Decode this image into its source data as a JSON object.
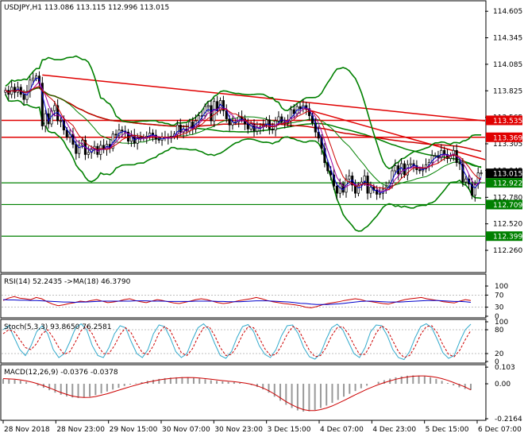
{
  "colors": {
    "background": "#ffffff",
    "frame": "#000000",
    "bull_candle": "#ffffff",
    "bear_candle": "#000000",
    "bollinger": "#008000",
    "level_line": "#008000",
    "trend_line": "#e00000",
    "ma_fast": "#0000cc",
    "ma_mid": "#a000a0",
    "ma_slow": "#cc0000",
    "ma_long_green": "#008000",
    "ma_long_red": "#cc0000",
    "rsi_line": "#cc0000",
    "rsi_ma": "#0000cc",
    "stoch_main": "#33aacc",
    "stoch_signal": "#cc0000",
    "macd_hist": "#999999",
    "macd_signal": "#cc0000",
    "tag_red": "#e00000",
    "tag_green": "#008000",
    "tag_black": "#000000"
  },
  "chart_data": [
    {
      "panel": "price",
      "type": "candlestick",
      "title": "USDJPY,H1  113.086 113.115 112.996 113.015",
      "ylim": [
        112.05,
        114.7
      ],
      "yticks": [
        "114.605",
        "114.345",
        "114.085",
        "113.825",
        "113.565",
        "113.305",
        "113.045",
        "112.780",
        "112.520",
        "112.260"
      ],
      "xticks": [
        "28 Nov 2018",
        "28 Nov 23:00",
        "29 Nov 15:00",
        "30 Nov 07:00",
        "30 Nov 23:00",
        "3 Dec 15:00",
        "4 Dec 07:00",
        "4 Dec 23:00",
        "5 Dec 15:00",
        "6 Dec 07:00"
      ],
      "close": [
        113.83,
        113.79,
        113.86,
        113.81,
        113.86,
        113.79,
        113.74,
        113.82,
        113.93,
        113.95,
        113.97,
        113.9,
        113.48,
        113.6,
        113.5,
        113.63,
        113.68,
        113.53,
        113.53,
        113.44,
        113.37,
        113.4,
        113.3,
        113.21,
        113.29,
        113.34,
        113.2,
        113.22,
        113.25,
        113.28,
        113.2,
        113.29,
        113.25,
        113.3,
        113.26,
        113.4,
        113.39,
        113.44,
        113.43,
        113.42,
        113.33,
        113.39,
        113.31,
        113.37,
        113.37,
        113.36,
        113.38,
        113.41,
        113.39,
        113.35,
        113.34,
        113.37,
        113.37,
        113.36,
        113.38,
        113.4,
        113.49,
        113.42,
        113.45,
        113.43,
        113.52,
        113.45,
        113.53,
        113.58,
        113.58,
        113.67,
        113.68,
        113.53,
        113.72,
        113.63,
        113.73,
        113.63,
        113.55,
        113.49,
        113.52,
        113.52,
        113.57,
        113.55,
        113.5,
        113.45,
        113.5,
        113.43,
        113.46,
        113.47,
        113.49,
        113.54,
        113.45,
        113.44,
        113.53,
        113.57,
        113.52,
        113.51,
        113.53,
        113.64,
        113.6,
        113.67,
        113.65,
        113.68,
        113.65,
        113.58,
        113.51,
        113.42,
        113.36,
        113.26,
        113.12,
        113.04,
        113.0,
        112.89,
        112.82,
        112.91,
        112.83,
        112.96,
        112.99,
        112.9,
        112.82,
        112.9,
        112.93,
        112.99,
        112.82,
        112.88,
        112.85,
        112.81,
        112.82,
        112.86,
        112.88,
        112.92,
        113.04,
        113.09,
        113.01,
        113.11,
        113.0,
        113.1,
        113.11,
        113.09,
        113.05,
        113.04,
        113.06,
        113.1,
        113.12,
        113.19,
        113.19,
        113.17,
        113.24,
        113.2,
        113.16,
        113.19,
        113.24,
        113.12,
        113.11,
        112.93,
        112.96,
        112.91,
        112.8,
        112.91,
        113.02,
        113.02
      ],
      "upper_levels": [
        {
          "label": "113.535",
          "color": "red",
          "value": 113.535
        },
        {
          "label": "113.369",
          "color": "red",
          "value": 113.369
        },
        {
          "label": "113.015",
          "color": "black",
          "value": 113.015
        },
        {
          "label": "112.922",
          "color": "green",
          "value": 112.922
        },
        {
          "label": "112.709",
          "color": "green",
          "value": 112.709
        },
        {
          "label": "112.399",
          "color": "green",
          "value": 112.399
        }
      ],
      "trendlines": [
        {
          "from_index": 12,
          "from_value": 113.98,
          "to_index": 160,
          "to_value": 113.53
        },
        {
          "from_index": 96,
          "from_value": 113.66,
          "to_index": 162,
          "to_value": 113.15
        }
      ]
    },
    {
      "panel": "rsi",
      "type": "line",
      "title": "RSI(14) 52.2435  ->MA(18) 46.3790",
      "ylim": [
        0,
        100
      ],
      "yticks": [
        "100",
        "70",
        "30",
        "0"
      ],
      "series": [
        {
          "name": "RSI(14)",
          "values": [
            52,
            60,
            65,
            60,
            58,
            55,
            62,
            58,
            48,
            40,
            35,
            38,
            42,
            45,
            50,
            48,
            52,
            55,
            50,
            45,
            47,
            50,
            55,
            58,
            52,
            48,
            45,
            50,
            55,
            52,
            48,
            44,
            42,
            46,
            50,
            55,
            58,
            55,
            50,
            45,
            42,
            44,
            48,
            52,
            55,
            58,
            62,
            58,
            52,
            48,
            45,
            42,
            40,
            38,
            35,
            30,
            28,
            32,
            38,
            42,
            45,
            48,
            52,
            55,
            58,
            55,
            50,
            48,
            45,
            42,
            40,
            45,
            50,
            55,
            58,
            60,
            62,
            58,
            55,
            52,
            48,
            46,
            44,
            50,
            55,
            52
          ]
        },
        {
          "name": "MA(18)",
          "values": [
            55,
            54,
            54,
            53,
            53,
            52,
            52,
            51,
            50,
            49,
            48,
            47,
            47,
            46,
            47,
            47,
            48,
            49,
            50,
            50,
            50,
            50,
            50,
            50,
            51,
            51,
            51,
            50,
            50,
            50,
            49,
            49,
            49,
            49,
            49,
            50,
            50,
            50,
            50,
            49,
            49,
            48,
            48,
            48,
            49,
            50,
            51,
            51,
            51,
            50,
            49,
            48,
            47,
            45,
            43,
            42,
            40,
            39,
            39,
            39,
            40,
            41,
            43,
            45,
            47,
            49,
            50,
            50,
            49,
            48,
            47,
            47,
            47,
            48,
            49,
            50,
            51,
            52,
            52,
            52,
            51,
            50,
            49,
            49,
            48,
            46
          ]
        }
      ]
    },
    {
      "panel": "stochastic",
      "type": "line",
      "title": "Stoch(5,3,3) 93.8650 76.2581",
      "ylim": [
        0,
        100
      ],
      "yticks": [
        "100",
        "80",
        "20",
        "0"
      ],
      "series": [
        {
          "name": "%K",
          "values": [
            80,
            90,
            60,
            30,
            15,
            40,
            75,
            90,
            70,
            30,
            10,
            20,
            50,
            85,
            95,
            80,
            40,
            15,
            10,
            35,
            70,
            90,
            85,
            50,
            20,
            10,
            30,
            70,
            92,
            88,
            60,
            25,
            10,
            20,
            55,
            85,
            95,
            80,
            45,
            15,
            8,
            25,
            60,
            88,
            93,
            75,
            40,
            18,
            10,
            30,
            65,
            90,
            92,
            70,
            35,
            12,
            6,
            20,
            55,
            85,
            94,
            80,
            50,
            20,
            10,
            35,
            75,
            92,
            90,
            65,
            30,
            10,
            5,
            25,
            60,
            88,
            95,
            85,
            55,
            22,
            8,
            15,
            50,
            80,
            94
          ]
        },
        {
          "name": "%D",
          "values": [
            70,
            80,
            75,
            55,
            35,
            30,
            45,
            70,
            80,
            60,
            35,
            18,
            25,
            50,
            78,
            88,
            70,
            40,
            20,
            20,
            40,
            68,
            85,
            72,
            45,
            22,
            18,
            40,
            72,
            88,
            78,
            50,
            22,
            15,
            32,
            62,
            85,
            88,
            65,
            35,
            15,
            18,
            38,
            68,
            88,
            85,
            60,
            32,
            15,
            18,
            40,
            68,
            88,
            82,
            55,
            28,
            12,
            15,
            35,
            65,
            85,
            88,
            70,
            42,
            18,
            18,
            42,
            72,
            90,
            80,
            52,
            25,
            10,
            15,
            38,
            68,
            88,
            90,
            72,
            42,
            18,
            12,
            28,
            55,
            78
          ]
        }
      ]
    },
    {
      "panel": "macd",
      "type": "bar",
      "title": "MACD(12,26,9) -0.0376 -0.0378",
      "ylim": [
        -0.2164,
        0.1034
      ],
      "yticks": [
        "0.103",
        "0.00",
        "-0.2164"
      ],
      "histogram": [
        0.03,
        0.028,
        0.025,
        0.02,
        0.012,
        0.0,
        -0.012,
        -0.025,
        -0.04,
        -0.055,
        -0.068,
        -0.078,
        -0.085,
        -0.088,
        -0.086,
        -0.08,
        -0.07,
        -0.06,
        -0.048,
        -0.036,
        -0.025,
        -0.014,
        -0.005,
        0.003,
        0.01,
        0.018,
        0.025,
        0.03,
        0.035,
        0.038,
        0.04,
        0.041,
        0.04,
        0.038,
        0.034,
        0.028,
        0.022,
        0.018,
        0.015,
        0.012,
        0.01,
        0.006,
        0.0,
        -0.008,
        -0.02,
        -0.035,
        -0.055,
        -0.08,
        -0.105,
        -0.13,
        -0.15,
        -0.165,
        -0.172,
        -0.17,
        -0.162,
        -0.15,
        -0.135,
        -0.118,
        -0.1,
        -0.08,
        -0.062,
        -0.045,
        -0.028,
        -0.012,
        0.0,
        0.012,
        0.022,
        0.032,
        0.04,
        0.046,
        0.05,
        0.052,
        0.05,
        0.046,
        0.04,
        0.03,
        0.018,
        0.005,
        -0.01,
        -0.022,
        -0.032,
        -0.038
      ],
      "signal": [
        0.032,
        0.03,
        0.028,
        0.024,
        0.018,
        0.01,
        0.0,
        -0.012,
        -0.025,
        -0.04,
        -0.054,
        -0.066,
        -0.076,
        -0.082,
        -0.085,
        -0.084,
        -0.079,
        -0.071,
        -0.062,
        -0.051,
        -0.04,
        -0.029,
        -0.018,
        -0.008,
        0.002,
        0.01,
        0.017,
        0.024,
        0.029,
        0.033,
        0.036,
        0.038,
        0.039,
        0.038,
        0.036,
        0.032,
        0.028,
        0.024,
        0.02,
        0.016,
        0.013,
        0.009,
        0.004,
        -0.003,
        -0.013,
        -0.026,
        -0.043,
        -0.064,
        -0.087,
        -0.11,
        -0.13,
        -0.147,
        -0.16,
        -0.166,
        -0.166,
        -0.16,
        -0.15,
        -0.137,
        -0.121,
        -0.104,
        -0.086,
        -0.068,
        -0.051,
        -0.034,
        -0.019,
        -0.005,
        0.007,
        0.018,
        0.028,
        0.036,
        0.042,
        0.047,
        0.049,
        0.049,
        0.046,
        0.04,
        0.032,
        0.021,
        0.008,
        -0.006,
        -0.019,
        -0.038
      ]
    }
  ]
}
